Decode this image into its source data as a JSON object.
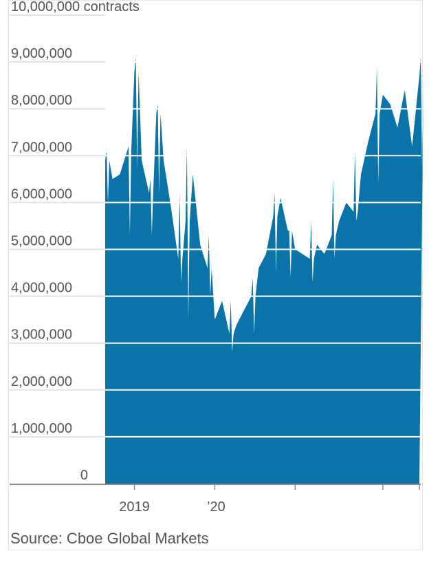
{
  "chart_data": {
    "type": "area",
    "unit_label": "contracts",
    "ylim": [
      0,
      10000000
    ],
    "y_ticks": [
      0,
      1000000,
      2000000,
      3000000,
      4000000,
      5000000,
      6000000,
      7000000,
      8000000,
      9000000,
      10000000
    ],
    "y_tick_labels": [
      "0",
      "1,000,000",
      "2,000,000",
      "3,000,000",
      "4,000,000",
      "5,000,000",
      "6,000,000",
      "7,000,000",
      "8,000,000",
      "9,000,000",
      "10,000,000 contracts"
    ],
    "x_tick_labels": [
      "2019",
      "’20"
    ],
    "grid": true,
    "series": [
      {
        "color": "#0a74a8",
        "x": [
          "2018-10",
          "2018-11",
          "2018-12",
          "2019-01",
          "2019-02",
          "2019-03",
          "2019-04",
          "2019-05",
          "2019-06",
          "2019-07",
          "2019-08",
          "2019-09",
          "2019-10",
          "2019-11",
          "2019-12",
          "2020-01",
          "2020-02",
          "2020-03",
          "2020-04",
          "2020-05",
          "2020-06",
          "2020-07",
          "2020-08",
          "2020-09",
          "2020-10",
          "2020-11",
          "2020-12",
          "2021-01",
          "2021-02",
          "2021-03",
          "2021-04",
          "2021-05",
          "2021-06",
          "2021-07",
          "2021-08",
          "2021-09",
          "2021-10",
          "2021-11",
          "2021-12",
          "2022-01",
          "2022-02",
          "2022-03",
          "2022-04",
          "2022-05"
        ],
        "values": [
          6900000,
          6500000,
          6600000,
          7100000,
          8800000,
          6900000,
          6200000,
          7900000,
          6900000,
          5900000,
          4800000,
          5600000,
          6600000,
          5100000,
          4600000,
          3500000,
          3900000,
          3200000,
          3400000,
          3700000,
          4000000,
          4600000,
          4900000,
          5700000,
          6100000,
          5400000,
          5000000,
          4900000,
          4800000,
          5100000,
          4900000,
          5300000,
          5600000,
          6000000,
          5800000,
          6600000,
          7300000,
          7900000,
          8300000,
          8100000,
          7600000,
          8400000,
          7200000,
          8700000
        ],
        "spikes": [
          {
            "x": "2018-10",
            "high": 7100000,
            "low": 6000000
          },
          {
            "x": "2019-01",
            "high": 7200000,
            "low": 5300000
          },
          {
            "x": "2019-02",
            "high": 9100000,
            "low": 6700000
          },
          {
            "x": "2019-04",
            "high": 6500000,
            "low": 5300000
          },
          {
            "x": "2019-05",
            "high": 8100000,
            "low": 6200000
          },
          {
            "x": "2019-08",
            "high": 6200000,
            "low": 4300000
          },
          {
            "x": "2019-09",
            "high": 7200000,
            "low": 3500000
          },
          {
            "x": "2019-12",
            "high": 5300000,
            "low": 4000000
          },
          {
            "x": "2020-03",
            "high": 3900000,
            "low": 2800000
          },
          {
            "x": "2020-06",
            "high": 4400000,
            "low": 3200000
          },
          {
            "x": "2020-09",
            "high": 6200000,
            "low": 4500000
          },
          {
            "x": "2020-11",
            "high": 5400000,
            "low": 4400000
          },
          {
            "x": "2021-02",
            "high": 5600000,
            "low": 4300000
          },
          {
            "x": "2021-05",
            "high": 6500000,
            "low": 4800000
          },
          {
            "x": "2021-08",
            "high": 7100000,
            "low": 5600000
          },
          {
            "x": "2021-11",
            "high": 8900000,
            "low": 6400000
          },
          {
            "x": "2022-05",
            "high": 9100000,
            "low": 6700000
          }
        ]
      }
    ],
    "x_axis_ticks": [
      "2019-02",
      "2020-01",
      "2020-12",
      "2021-12",
      "2022-05"
    ]
  },
  "source": "Source: Cboe Global Markets"
}
